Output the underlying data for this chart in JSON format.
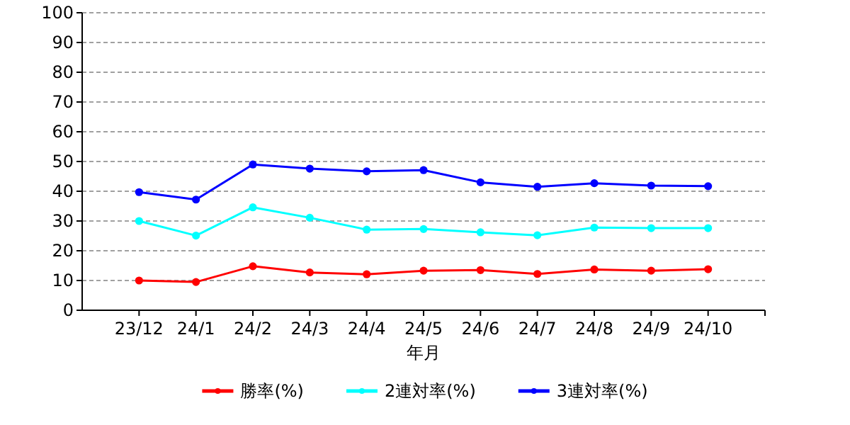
{
  "chart_data": {
    "type": "line",
    "xlabel": "年月",
    "categories": [
      "23/12",
      "24/1",
      "24/2",
      "24/3",
      "24/4",
      "24/5",
      "24/6",
      "24/7",
      "24/8",
      "24/9",
      "24/10"
    ],
    "series": [
      {
        "name": "勝率(%)",
        "color": "#ff0000",
        "values": [
          10,
          9.5,
          14.8,
          12.7,
          12.1,
          13.3,
          13.5,
          12.2,
          13.7,
          13.3,
          13.8
        ]
      },
      {
        "name": "2連対率(%)",
        "color": "#00ffff",
        "values": [
          30,
          25.1,
          34.6,
          31.1,
          27.1,
          27.3,
          26.2,
          25.2,
          27.8,
          27.6,
          27.6
        ]
      },
      {
        "name": "3連対率(%)",
        "color": "#0000ff",
        "values": [
          39.7,
          37.2,
          49,
          47.6,
          46.7,
          47.1,
          43,
          41.5,
          42.7,
          41.9,
          41.7
        ]
      }
    ],
    "ylim": [
      0,
      100
    ],
    "yticks": [
      0,
      10,
      20,
      30,
      40,
      50,
      60,
      70,
      80,
      90,
      100
    ],
    "grid": "y",
    "legend": "bottom",
    "marker": "circle",
    "line_style": "solid"
  }
}
